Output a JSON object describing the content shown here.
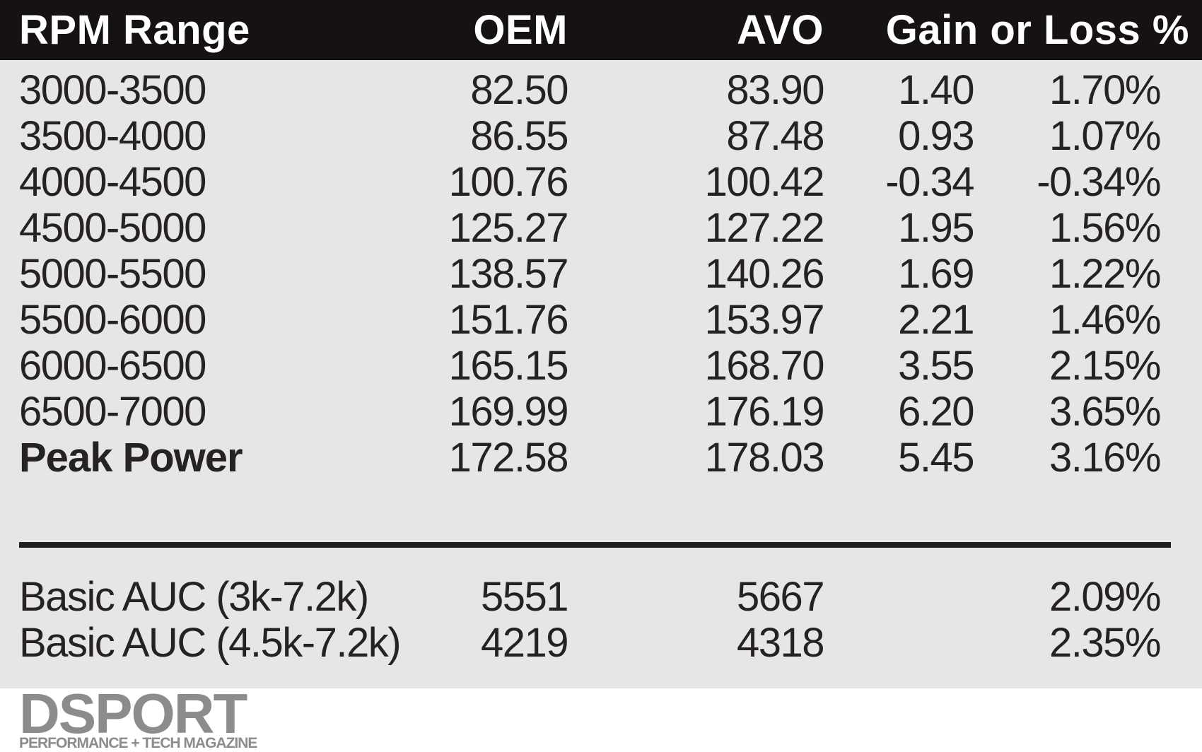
{
  "table": {
    "columns": [
      "RPM Range",
      "OEM",
      "AVO",
      "Gain or Loss %"
    ],
    "rows": [
      {
        "label": "3000-3500",
        "oem": "82.50",
        "avo": "83.90",
        "gain": "1.40",
        "pct": "1.70%"
      },
      {
        "label": "3500-4000",
        "oem": "86.55",
        "avo": "87.48",
        "gain": "0.93",
        "pct": "1.07%"
      },
      {
        "label": "4000-4500",
        "oem": "100.76",
        "avo": "100.42",
        "gain": "-0.34",
        "pct": "-0.34%"
      },
      {
        "label": "4500-5000",
        "oem": "125.27",
        "avo": "127.22",
        "gain": "1.95",
        "pct": "1.56%"
      },
      {
        "label": "5000-5500",
        "oem": "138.57",
        "avo": "140.26",
        "gain": "1.69",
        "pct": "1.22%"
      },
      {
        "label": "5500-6000",
        "oem": "151.76",
        "avo": "153.97",
        "gain": "2.21",
        "pct": "1.46%"
      },
      {
        "label": "6000-6500",
        "oem": "165.15",
        "avo": "168.70",
        "gain": "3.55",
        "pct": "2.15%"
      },
      {
        "label": "6500-7000",
        "oem": "169.99",
        "avo": "176.19",
        "gain": "6.20",
        "pct": "3.65%"
      },
      {
        "label": "Peak Power",
        "oem": "172.58",
        "avo": "178.03",
        "gain": "5.45",
        "pct": "3.16%"
      }
    ],
    "summary_rows": [
      {
        "label": "Basic AUC (3k-7.2k)",
        "oem": "5551",
        "avo": "5667",
        "gain": "",
        "pct": "2.09%"
      },
      {
        "label": "Basic AUC (4.5k-7.2k)",
        "oem": "4219",
        "avo": "4318",
        "gain": "",
        "pct": "2.35%"
      }
    ]
  },
  "logo": {
    "name": "DSPORT",
    "tagline": "PERFORMANCE + TECH MAGAZINE"
  },
  "colors": {
    "header_bg": "#161114",
    "header_text": "#ffffff",
    "body_bg": "#e6e5e7",
    "text": "#262223",
    "divider": "#231f20",
    "logo_gray": "#8c8c8c"
  },
  "chart_data": {
    "type": "table",
    "title": "OEM vs AVO dyno comparison by RPM range",
    "columns": [
      "RPM Range",
      "OEM",
      "AVO",
      "Gain",
      "Gain or Loss %"
    ],
    "rows": [
      [
        "3000-3500",
        82.5,
        83.9,
        1.4,
        "1.70%"
      ],
      [
        "3500-4000",
        86.55,
        87.48,
        0.93,
        "1.07%"
      ],
      [
        "4000-4500",
        100.76,
        100.42,
        -0.34,
        "-0.34%"
      ],
      [
        "4500-5000",
        125.27,
        127.22,
        1.95,
        "1.56%"
      ],
      [
        "5000-5500",
        138.57,
        140.26,
        1.69,
        "1.22%"
      ],
      [
        "5500-6000",
        151.76,
        153.97,
        2.21,
        "1.46%"
      ],
      [
        "6000-6500",
        165.15,
        168.7,
        3.55,
        "2.15%"
      ],
      [
        "6500-7000",
        169.99,
        176.19,
        6.2,
        "3.65%"
      ],
      [
        "Peak Power",
        172.58,
        178.03,
        5.45,
        "3.16%"
      ]
    ],
    "summary": [
      [
        "Basic AUC (3k-7.2k)",
        5551,
        5667,
        null,
        "2.09%"
      ],
      [
        "Basic AUC (4.5k-7.2k)",
        4219,
        4318,
        null,
        "2.35%"
      ]
    ]
  }
}
